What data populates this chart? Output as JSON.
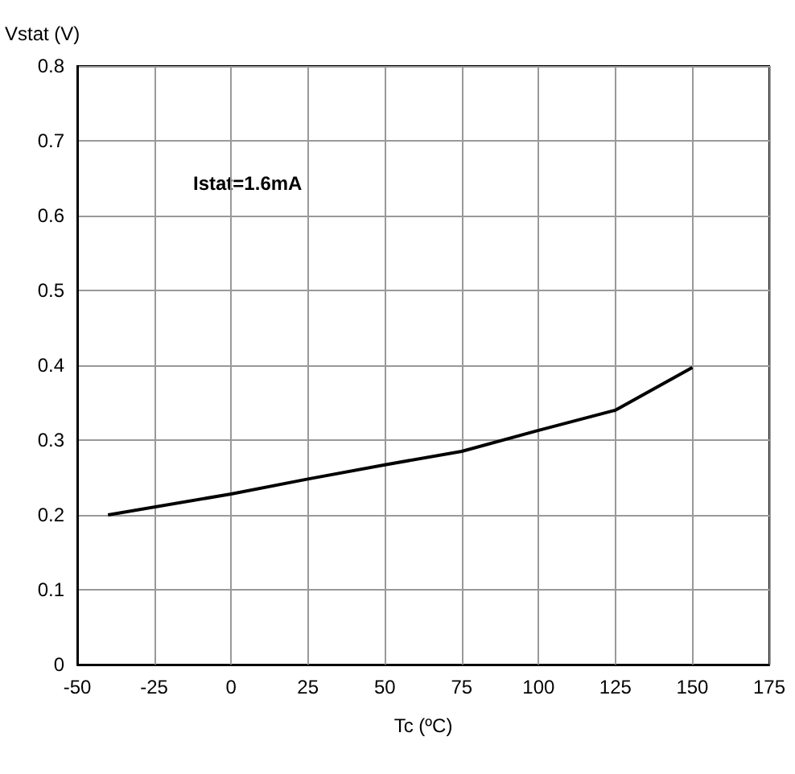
{
  "chart_data": {
    "type": "line",
    "xlabel": "Tc (ºC)",
    "ylabel": "Vstat (V)",
    "x": [
      -40,
      0,
      25,
      50,
      75,
      100,
      125,
      150
    ],
    "series": [
      {
        "color": "#000000",
        "values": [
          0.2,
          0.228,
          0.248,
          0.267,
          0.285,
          0.313,
          0.34,
          0.397
        ]
      }
    ],
    "xlim": [
      -50,
      175
    ],
    "xticks": [
      -50,
      -25,
      0,
      25,
      50,
      75,
      100,
      125,
      150,
      175
    ],
    "ylim": [
      0,
      0.8
    ],
    "yticks": [
      0,
      0.1,
      0.2,
      0.3,
      0.4,
      0.5,
      0.6,
      0.7,
      0.8
    ],
    "annotations": [
      "Istat=1.6mA"
    ],
    "grid": true,
    "marker": "none",
    "line_style": "solid"
  }
}
